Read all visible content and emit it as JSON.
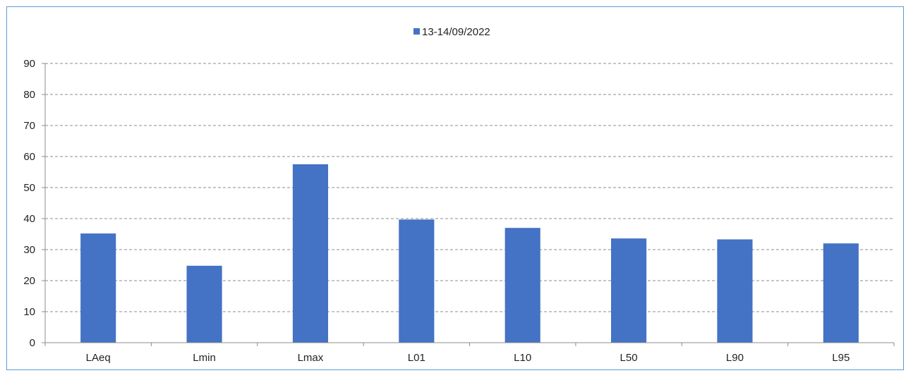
{
  "chart_data": {
    "type": "bar",
    "categories": [
      "LAeq",
      "Lmin",
      "Lmax",
      "L01",
      "L10",
      "L50",
      "L90",
      "L95"
    ],
    "series": [
      {
        "name": "13-14/09/2022",
        "values": [
          35.2,
          24.8,
          57.5,
          39.7,
          37.0,
          33.6,
          33.3,
          32.0
        ],
        "color": "#4472c4"
      }
    ],
    "ylim": [
      0,
      90
    ],
    "yticks": [
      0,
      10,
      20,
      30,
      40,
      50,
      60,
      70,
      80,
      90
    ],
    "grid": true,
    "legend_position": "top-center",
    "title": "",
    "xlabel": "",
    "ylabel": ""
  }
}
